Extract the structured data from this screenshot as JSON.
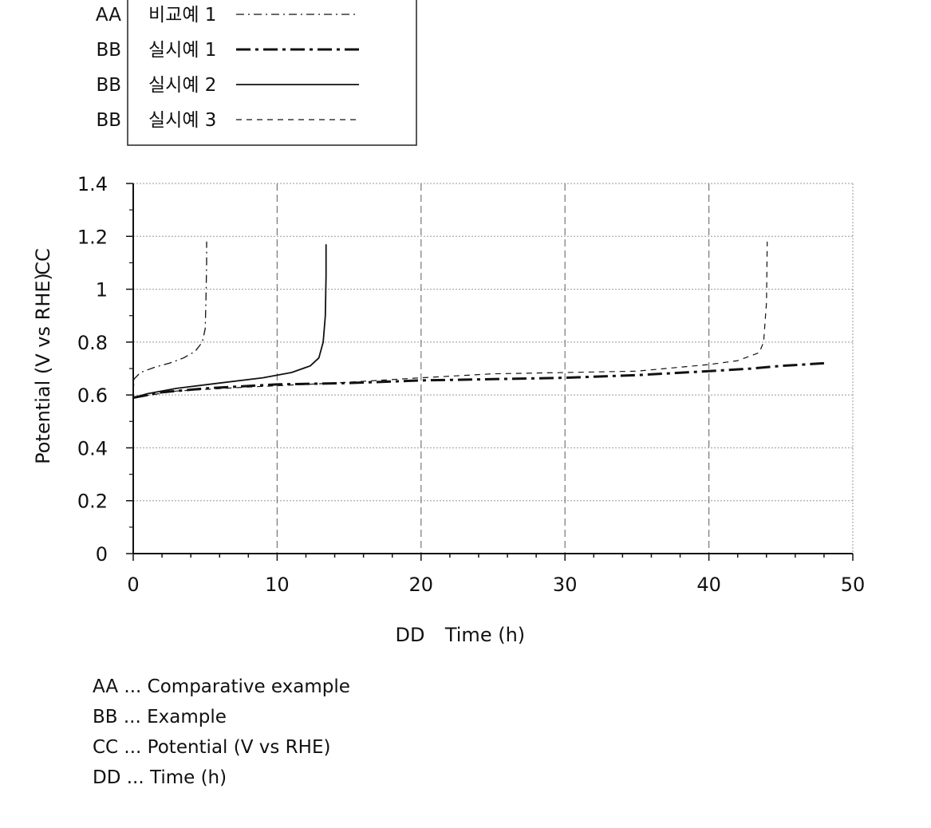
{
  "chart_data": {
    "type": "line",
    "xlabel": "Time (h)",
    "ylabel": "Potential (V vs RHE)",
    "xlabel_tag": "DD",
    "ylabel_tag": "CC",
    "xlim": [
      0,
      50
    ],
    "ylim": [
      0,
      1.4
    ],
    "xticks": [
      "0",
      "10",
      "20",
      "30",
      "40",
      "50"
    ],
    "yticks": [
      "0",
      "0.2",
      "0.4",
      "0.6",
      "0.8",
      "1",
      "1.2",
      "1.4"
    ],
    "grid": true,
    "legend_placement": "top-left",
    "series": [
      {
        "tag": "AA",
        "name": "비교예 1",
        "style": "dash-dot-thin",
        "x": [
          0,
          0.05,
          0.5,
          1.5,
          2.5,
          3.5,
          4.3,
          4.8,
          5.0,
          5.05,
          5.1,
          5.1
        ],
        "y": [
          0.59,
          0.66,
          0.685,
          0.705,
          0.72,
          0.74,
          0.765,
          0.8,
          0.85,
          0.95,
          1.1,
          1.18
        ]
      },
      {
        "tag": "BB",
        "name": "실시예 1",
        "style": "dash-dot-thick",
        "x": [
          0,
          2,
          5,
          10,
          15,
          20,
          25,
          30,
          35,
          40,
          43,
          45,
          48
        ],
        "y": [
          0.59,
          0.61,
          0.625,
          0.64,
          0.645,
          0.655,
          0.66,
          0.665,
          0.675,
          0.69,
          0.7,
          0.71,
          0.72
        ]
      },
      {
        "tag": "BB",
        "name": "실시예 2",
        "style": "solid",
        "x": [
          0,
          1,
          3,
          6,
          9,
          11,
          12.3,
          12.9,
          13.2,
          13.35,
          13.4,
          13.4
        ],
        "y": [
          0.59,
          0.605,
          0.625,
          0.645,
          0.665,
          0.685,
          0.71,
          0.74,
          0.8,
          0.9,
          1.05,
          1.17
        ]
      },
      {
        "tag": "BB",
        "name": "실시예 3",
        "style": "dashed",
        "x": [
          0,
          3,
          8,
          14,
          20,
          25,
          30,
          35,
          40,
          42,
          43.5,
          43.8,
          44.0,
          44.05
        ],
        "y": [
          0.59,
          0.615,
          0.63,
          0.645,
          0.665,
          0.68,
          0.685,
          0.69,
          0.715,
          0.73,
          0.76,
          0.8,
          0.95,
          1.18
        ]
      }
    ]
  },
  "key": [
    "AA ... Comparative example",
    "BB ... Example",
    "CC ... Potential (V vs RHE)",
    "DD ... Time (h)"
  ]
}
